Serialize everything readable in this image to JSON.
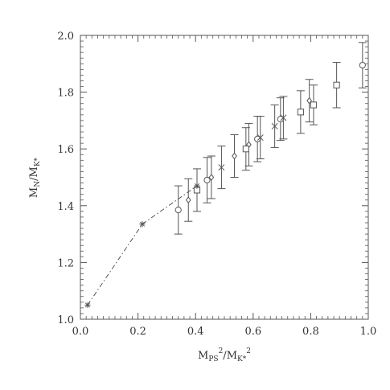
{
  "chart_data": {
    "type": "scatter",
    "xlim": [
      0.0,
      1.0
    ],
    "ylim": [
      1.0,
      2.0
    ],
    "x_ticks": [
      "0.0",
      "0.2",
      "0.4",
      "0.6",
      "0.8",
      "1.0"
    ],
    "y_ticks": [
      "1.0",
      "1.2",
      "1.4",
      "1.6",
      "1.8",
      "2.0"
    ],
    "x_tick_values": [
      0.0,
      0.2,
      0.4,
      0.6,
      0.8,
      1.0
    ],
    "y_tick_values": [
      1.0,
      1.2,
      1.4,
      1.6,
      1.8,
      2.0
    ],
    "xlabel": {
      "base1": "M",
      "sub1": "PS",
      "sup1": "2",
      "slash": "/",
      "base2": "M",
      "sub2": "K*",
      "sup2": "2"
    },
    "ylabel": {
      "base1": "M",
      "sub1": "N",
      "slash": "/",
      "base2": "M",
      "sub2": "K*"
    },
    "grid": false,
    "series": [
      {
        "marker": "circle",
        "points": [
          {
            "x": 0.34,
            "y": 1.385,
            "yerr": 0.085
          },
          {
            "x": 0.44,
            "y": 1.49,
            "yerr": 0.08
          },
          {
            "x": 0.615,
            "y": 1.635,
            "yerr": 0.08
          },
          {
            "x": 0.695,
            "y": 1.705,
            "yerr": 0.075
          },
          {
            "x": 0.98,
            "y": 1.895,
            "yerr": 0.08
          }
        ]
      },
      {
        "marker": "diamond",
        "points": [
          {
            "x": 0.375,
            "y": 1.42,
            "yerr": 0.075
          },
          {
            "x": 0.455,
            "y": 1.5,
            "yerr": 0.075
          },
          {
            "x": 0.535,
            "y": 1.575,
            "yerr": 0.075
          },
          {
            "x": 0.585,
            "y": 1.615,
            "yerr": 0.075
          },
          {
            "x": 0.795,
            "y": 1.77,
            "yerr": 0.075
          }
        ]
      },
      {
        "marker": "square",
        "points": [
          {
            "x": 0.405,
            "y": 1.455,
            "yerr": 0.075
          },
          {
            "x": 0.575,
            "y": 1.6,
            "yerr": 0.075
          },
          {
            "x": 0.765,
            "y": 1.73,
            "yerr": 0.075
          },
          {
            "x": 0.81,
            "y": 1.755,
            "yerr": 0.07
          },
          {
            "x": 0.89,
            "y": 1.825,
            "yerr": 0.08
          }
        ]
      },
      {
        "marker": "cross",
        "points": [
          {
            "x": 0.49,
            "y": 1.535,
            "yerr": 0.075
          },
          {
            "x": 0.675,
            "y": 1.68,
            "yerr": 0.075
          },
          {
            "x": 0.705,
            "y": 1.71,
            "yerr": 0.075
          },
          {
            "x": 0.625,
            "y": 1.64,
            "yerr": 0.075
          }
        ]
      },
      {
        "marker": "star",
        "line": "dash-dot",
        "points": [
          {
            "x": 0.025,
            "y": 1.05
          },
          {
            "x": 0.215,
            "y": 1.335
          },
          {
            "x": 0.405,
            "y": 1.47
          }
        ]
      }
    ]
  }
}
